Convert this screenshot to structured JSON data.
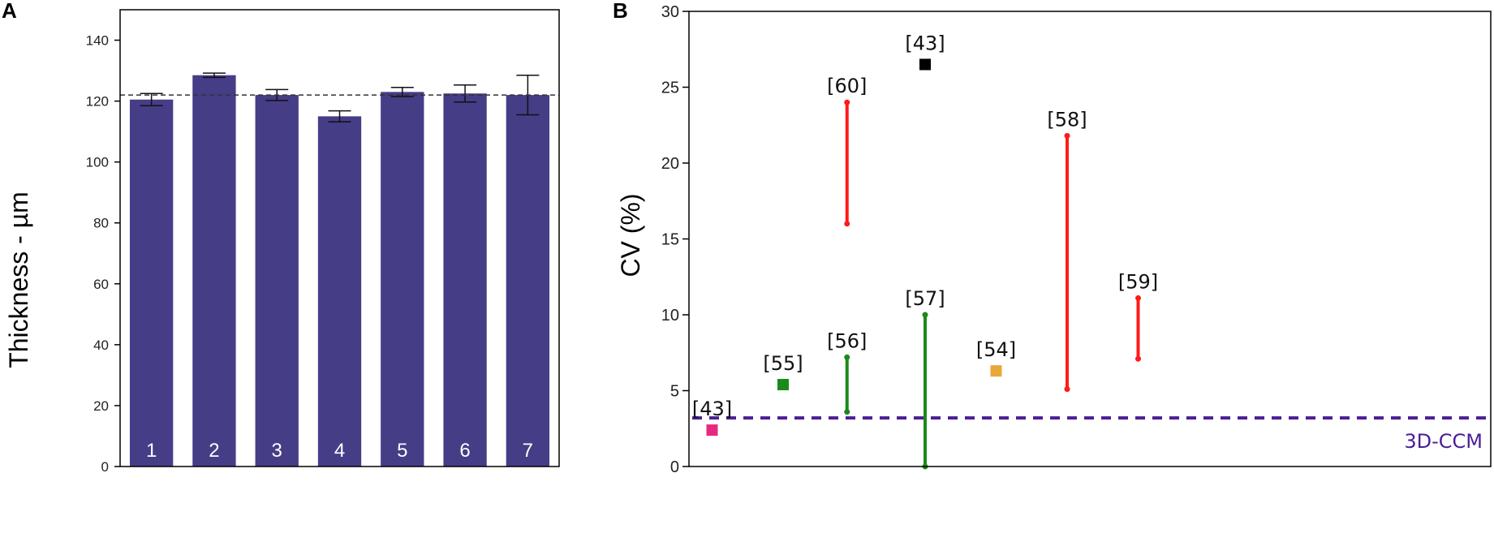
{
  "chart_data": [
    {
      "panel": "A",
      "type": "bar",
      "ylabel": "Thickness - µm",
      "ylim": [
        0,
        150
      ],
      "yticks": [
        0,
        20,
        40,
        60,
        80,
        100,
        120,
        140
      ],
      "categories": [
        "1",
        "2",
        "3",
        "4",
        "5",
        "6",
        "7"
      ],
      "values": [
        120.5,
        128.5,
        122,
        115,
        123,
        122.5,
        122
      ],
      "errors": [
        2,
        0.7,
        1.8,
        1.8,
        1.5,
        2.8,
        6.5
      ],
      "reference_line": 122,
      "bar_color": "#463d87"
    },
    {
      "panel": "B",
      "type": "scatter",
      "ylabel": "CV (%)",
      "ylim": [
        0,
        30
      ],
      "yticks": [
        0,
        5,
        10,
        15,
        20,
        25,
        30
      ],
      "points": [
        {
          "label": "[43]",
          "x": 1,
          "y": 2.4,
          "color": "#e8297f"
        },
        {
          "label": "[55]",
          "x": 2,
          "y": 5.4,
          "color": "#1a8a1a"
        },
        {
          "label": "[43]",
          "x": 4,
          "y": 26.5,
          "color": "#000000"
        },
        {
          "label": "[54]",
          "x": 5,
          "y": 6.3,
          "color": "#e8a838"
        }
      ],
      "ranges": [
        {
          "label": "[60]",
          "x": 2.9,
          "low": 16,
          "high": 24,
          "color": "#ff1a1a"
        },
        {
          "label": "[56]",
          "x": 2.9,
          "low": 3.6,
          "high": 7.2,
          "color": "#1a8a1a"
        },
        {
          "label": "[57]",
          "x": 4,
          "low": 0,
          "high": 10,
          "color": "#1a8a1a"
        },
        {
          "label": "[58]",
          "x": 6,
          "low": 5.1,
          "high": 21.8,
          "color": "#ff1a1a"
        },
        {
          "label": "[59]",
          "x": 7,
          "low": 7.1,
          "high": 11.1,
          "color": "#ff1a1a"
        }
      ],
      "reference_line": {
        "y": 3.2,
        "label": "3D-CCM",
        "color": "#4b1e96"
      }
    }
  ]
}
